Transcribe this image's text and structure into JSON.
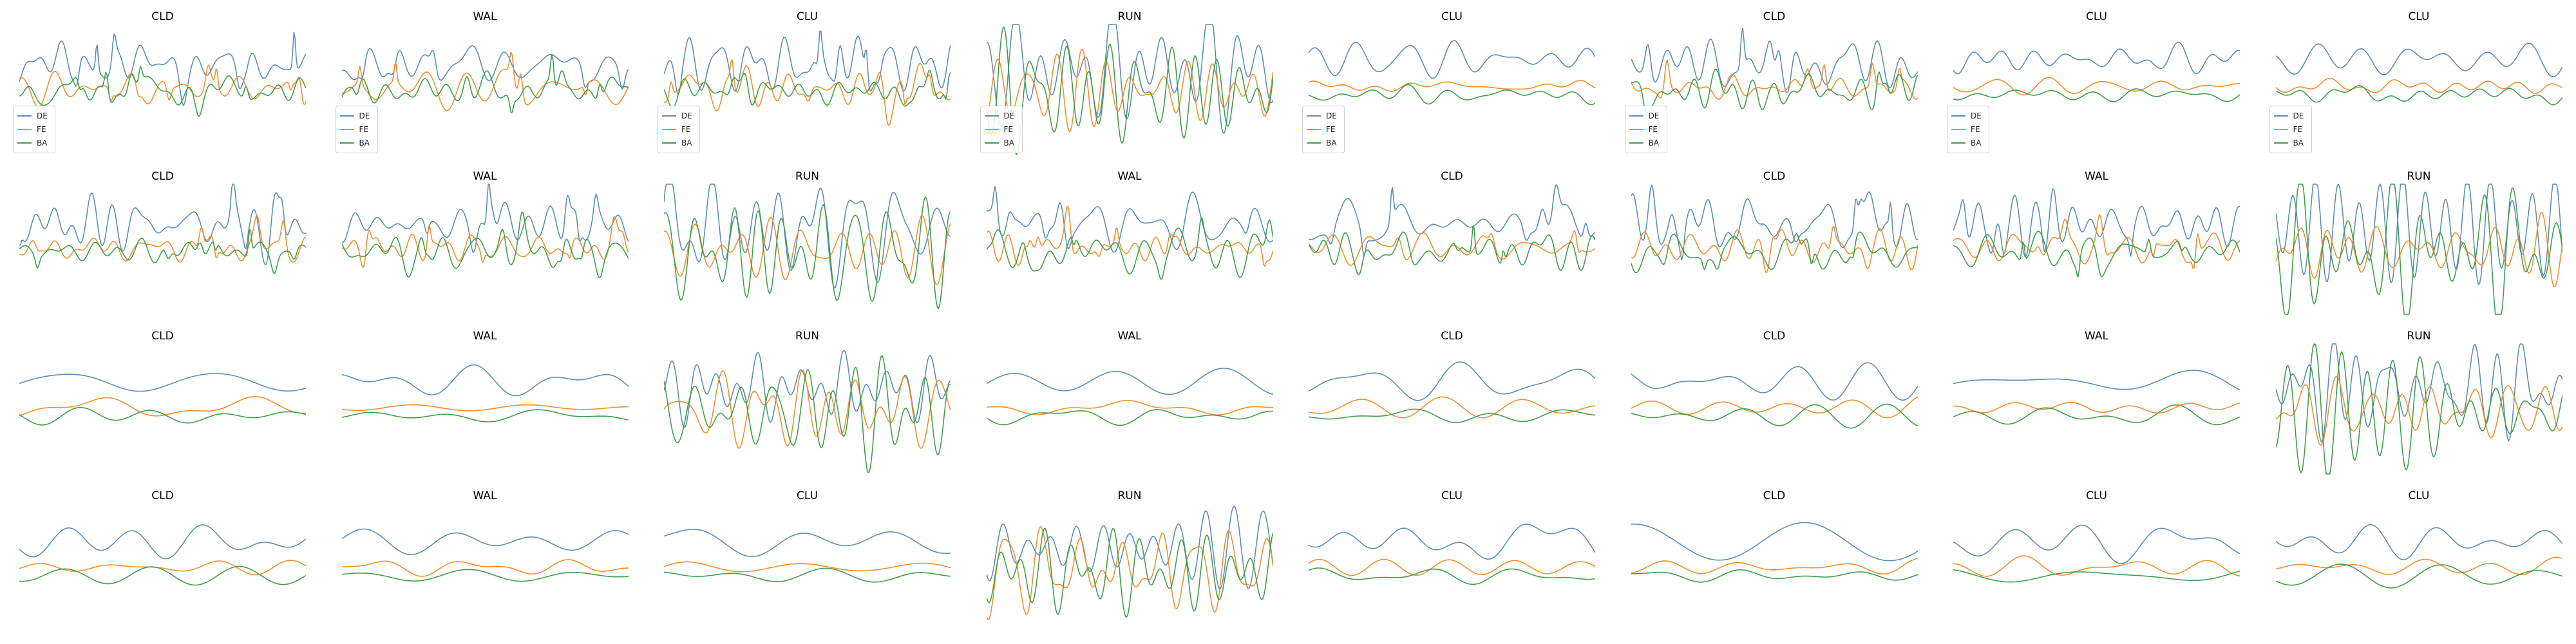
{
  "chart_data": {
    "type": "line",
    "grid": false,
    "layout": "4 rows x 8 columns of small multiples",
    "series_names": [
      "DE",
      "FE",
      "BA"
    ],
    "colors": {
      "DE": "#5b8db8",
      "FE": "#f28e2b",
      "BA": "#3f9e4a"
    },
    "legend_placement": "lower-left (first row only)",
    "panels": [
      {
        "title": "CLD",
        "legend": true,
        "pattern": "spiky"
      },
      {
        "title": "WAL",
        "legend": true,
        "pattern": "spiky"
      },
      {
        "title": "CLU",
        "legend": true,
        "pattern": "spiky"
      },
      {
        "title": "RUN",
        "legend": true,
        "pattern": "run"
      },
      {
        "title": "CLU",
        "legend": true,
        "pattern": "calm"
      },
      {
        "title": "CLD",
        "legend": true,
        "pattern": "spiky"
      },
      {
        "title": "CLU",
        "legend": true,
        "pattern": "calm"
      },
      {
        "title": "CLU",
        "legend": true,
        "pattern": "calm"
      },
      {
        "title": "CLD",
        "legend": false,
        "pattern": "spiky"
      },
      {
        "title": "WAL",
        "legend": false,
        "pattern": "spiky"
      },
      {
        "title": "RUN",
        "legend": false,
        "pattern": "run"
      },
      {
        "title": "WAL",
        "legend": false,
        "pattern": "spiky"
      },
      {
        "title": "CLD",
        "legend": false,
        "pattern": "spiky"
      },
      {
        "title": "CLD",
        "legend": false,
        "pattern": "spiky"
      },
      {
        "title": "WAL",
        "legend": false,
        "pattern": "spiky"
      },
      {
        "title": "RUN",
        "legend": false,
        "pattern": "run"
      },
      {
        "title": "CLD",
        "legend": false,
        "pattern": "smooth"
      },
      {
        "title": "WAL",
        "legend": false,
        "pattern": "smooth"
      },
      {
        "title": "RUN",
        "legend": false,
        "pattern": "run"
      },
      {
        "title": "WAL",
        "legend": false,
        "pattern": "smooth"
      },
      {
        "title": "CLD",
        "legend": false,
        "pattern": "smooth"
      },
      {
        "title": "CLD",
        "legend": false,
        "pattern": "smooth"
      },
      {
        "title": "WAL",
        "legend": false,
        "pattern": "smooth"
      },
      {
        "title": "RUN",
        "legend": false,
        "pattern": "run"
      },
      {
        "title": "CLD",
        "legend": false,
        "pattern": "smooth"
      },
      {
        "title": "WAL",
        "legend": false,
        "pattern": "smooth"
      },
      {
        "title": "CLU",
        "legend": false,
        "pattern": "smooth"
      },
      {
        "title": "RUN",
        "legend": false,
        "pattern": "run"
      },
      {
        "title": "CLU",
        "legend": false,
        "pattern": "smooth"
      },
      {
        "title": "CLD",
        "legend": false,
        "pattern": "smooth"
      },
      {
        "title": "CLU",
        "legend": false,
        "pattern": "smooth"
      },
      {
        "title": "CLU",
        "legend": false,
        "pattern": "smooth"
      }
    ]
  }
}
